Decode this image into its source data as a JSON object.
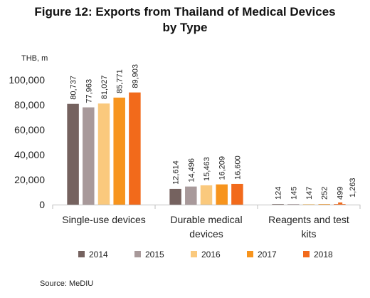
{
  "chart_data": {
    "type": "bar",
    "title_line1": "Figure 12: Exports from Thailand of Medical Devices",
    "title_line2": "by Type",
    "ylabel": "THB, m",
    "ylim": [
      0,
      100000
    ],
    "yticks": [
      "0",
      "20,000",
      "40,000",
      "60,000",
      "80,000",
      "100,000"
    ],
    "categories": [
      [
        "Single-use devices"
      ],
      [
        "Durable medical",
        "devices"
      ],
      [
        "Reagents and test",
        "kits"
      ]
    ],
    "series": [
      {
        "name": "2014",
        "color": "#75625f",
        "values": [
          80737,
          12614,
          124
        ],
        "labels": [
          "80,737",
          "12,614",
          "124"
        ]
      },
      {
        "name": "2015",
        "color": "#a8999a",
        "values": [
          77963,
          14496,
          145
        ],
        "labels": [
          "77,963",
          "14,496",
          "145"
        ]
      },
      {
        "name": "2016",
        "color": "#fac97d",
        "values": [
          81027,
          15463,
          147
        ],
        "labels": [
          "81,027",
          "15,463",
          "147"
        ]
      },
      {
        "name": "2017",
        "color": "#f7941d",
        "values": [
          85771,
          16209,
          252
        ],
        "labels": [
          "85,771",
          "16,209",
          "252"
        ]
      },
      {
        "name": "2018",
        "color": "#f26a1b",
        "values": [
          89903,
          16600,
          499
        ],
        "labels": [
          "89,903",
          "16,600",
          "499"
        ]
      }
    ],
    "extra_label": "1,263",
    "legend_position": "bottom",
    "grid": false
  },
  "source": "Source: MeDIU"
}
